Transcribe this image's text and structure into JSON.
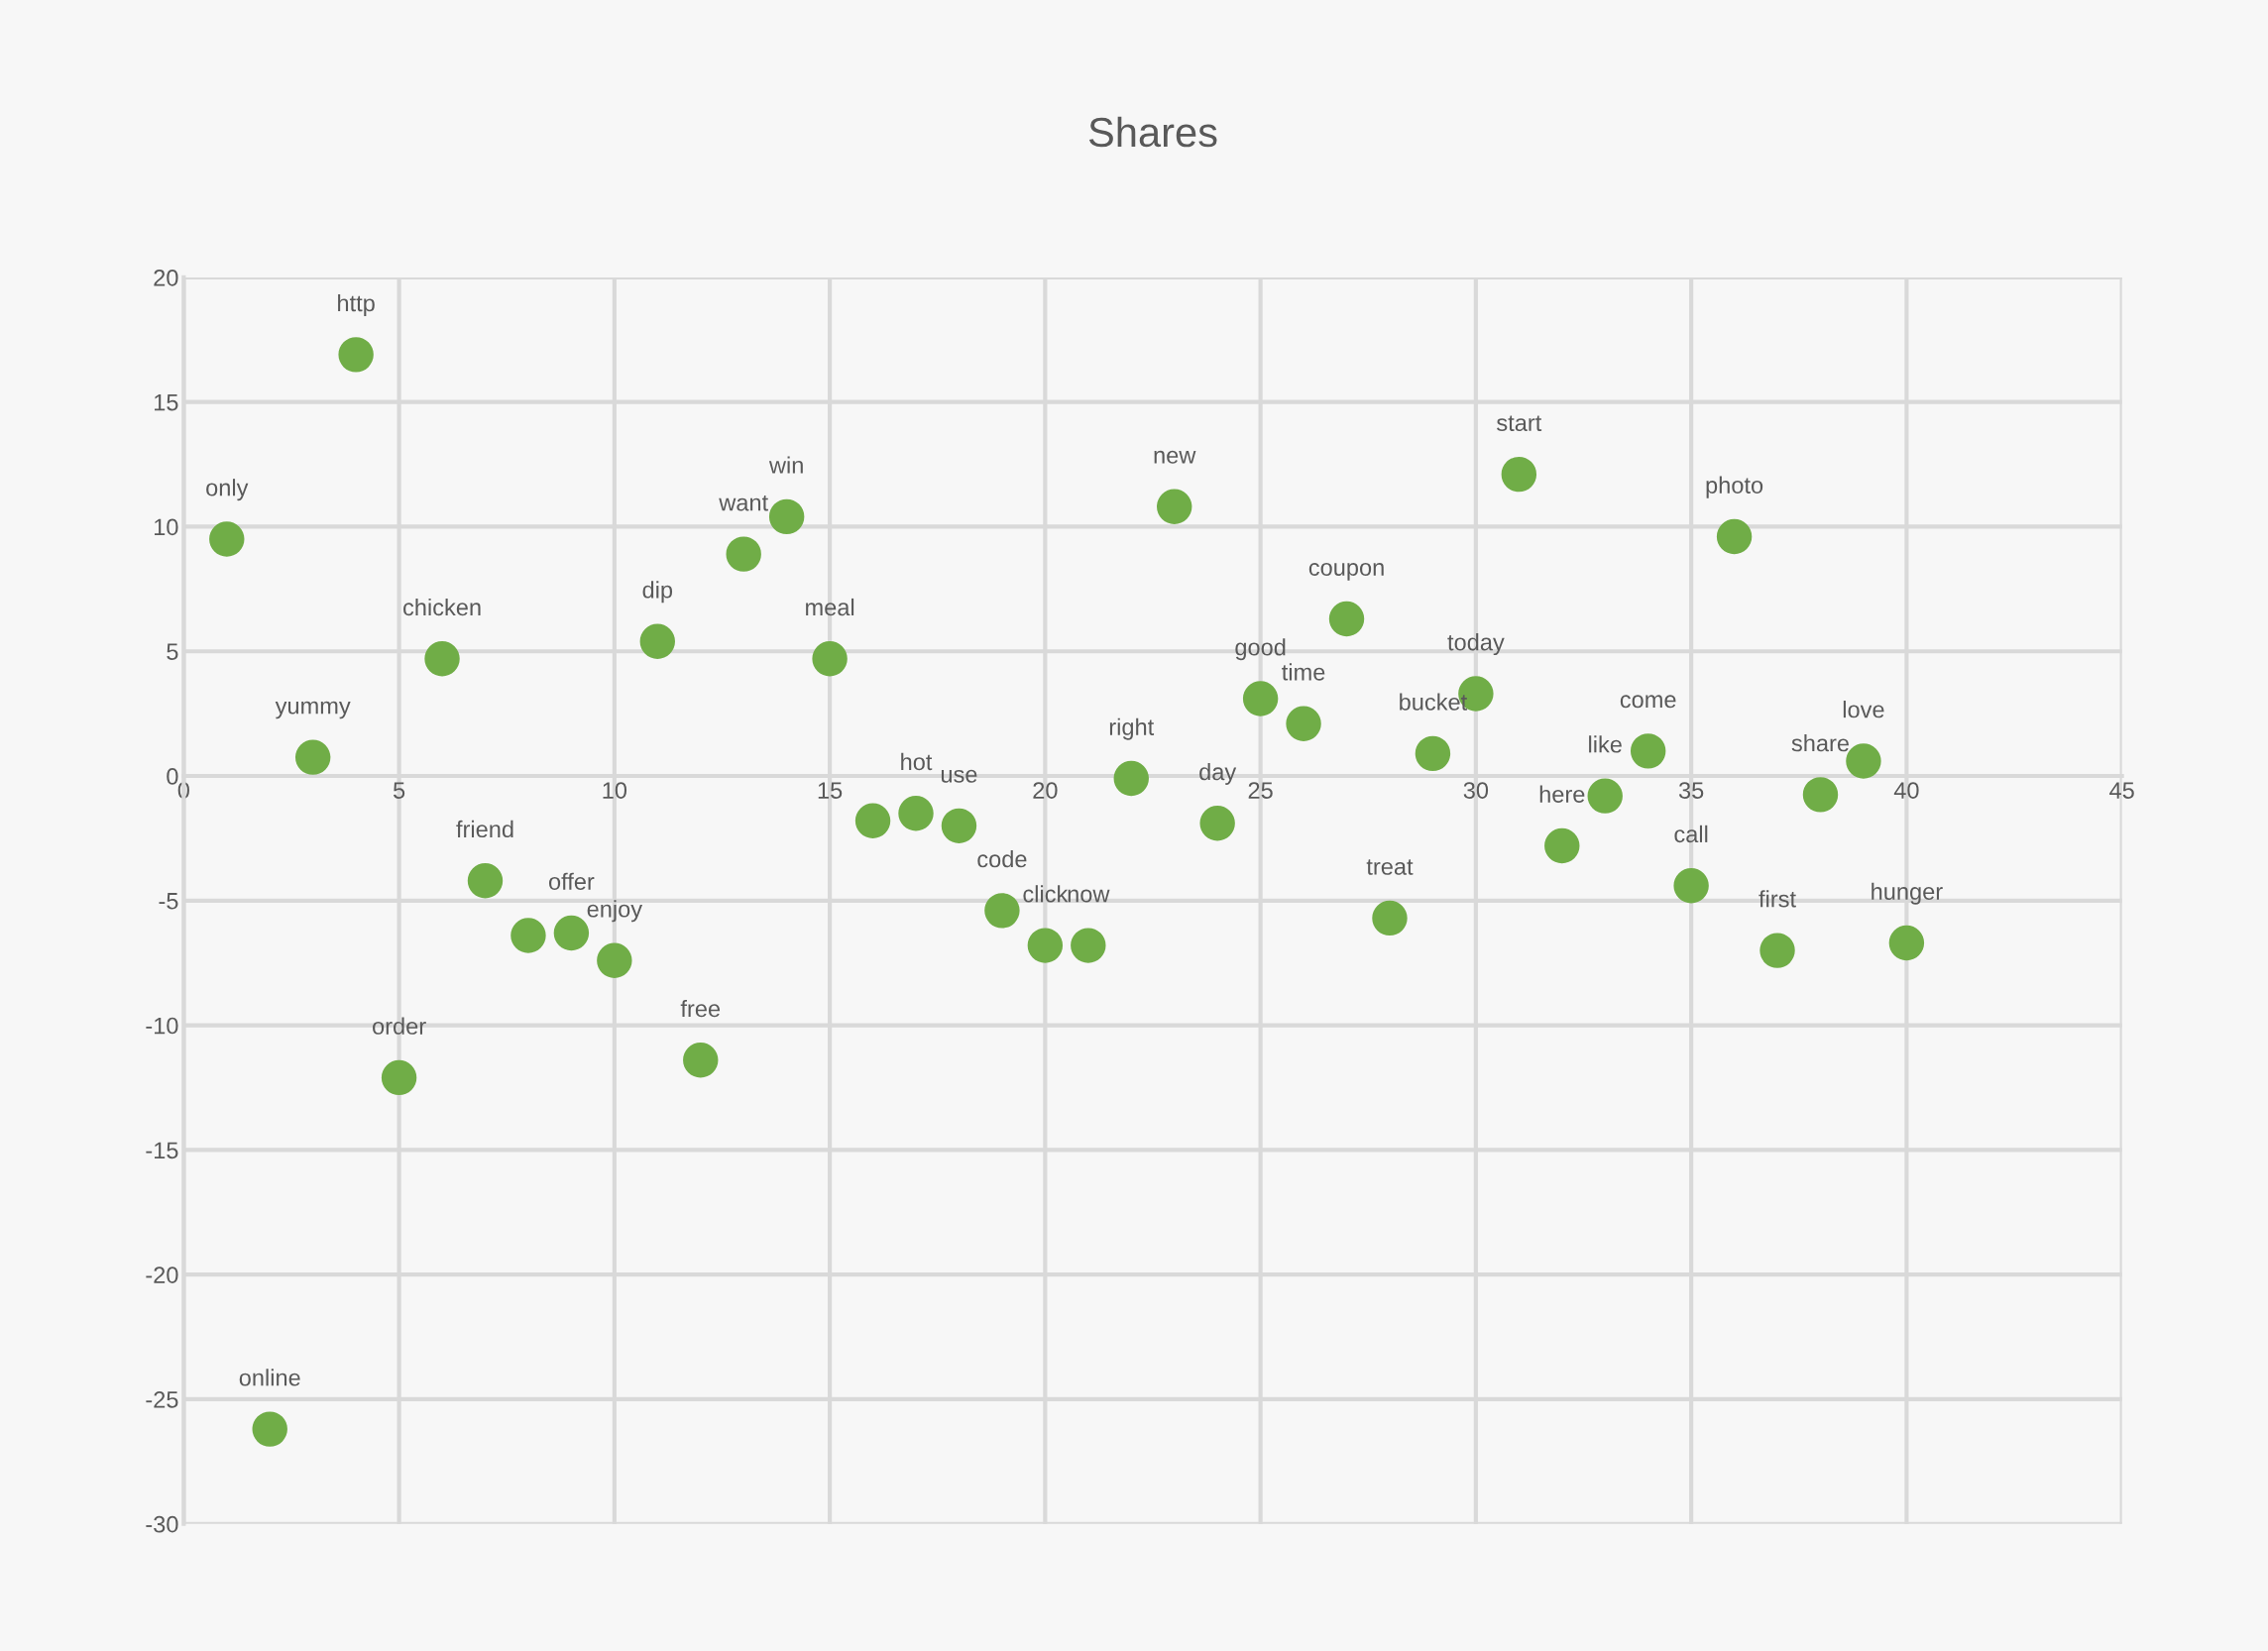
{
  "chart_data": {
    "type": "scatter",
    "title": "Shares",
    "x": [
      1,
      2,
      3,
      4,
      5,
      6,
      7,
      8,
      9,
      10,
      11,
      12,
      13,
      14,
      15,
      16,
      17,
      18,
      19,
      20,
      21,
      22,
      23,
      24,
      25,
      26,
      27,
      28,
      29,
      30,
      31,
      32,
      33,
      34,
      35,
      36,
      37,
      38,
      39,
      40
    ],
    "values": [
      9.5,
      -26.2,
      0.75,
      16.9,
      -12.1,
      4.7,
      -4.2,
      -6.4,
      -6.3,
      -7.4,
      5.4,
      -11.4,
      8.9,
      10.4,
      4.7,
      -1.8,
      -1.5,
      -2.0,
      -5.4,
      -6.8,
      -6.8,
      -0.1,
      10.8,
      -1.9,
      3.1,
      2.1,
      6.3,
      -5.7,
      0.9,
      3.3,
      12.1,
      -2.8,
      -0.8,
      1.0,
      -4.4,
      9.6,
      -7.0,
      -0.75,
      0.6,
      -6.7
    ],
    "color": "#70ad47",
    "marker": "circle",
    "grid": true,
    "xlim": [
      0,
      45
    ],
    "xticks": [
      0,
      5,
      10,
      15,
      20,
      25,
      30,
      35,
      40,
      45
    ],
    "ylim": [
      -30,
      20
    ],
    "yticks": [
      -30,
      -25,
      -20,
      -15,
      -10,
      -5,
      0,
      5,
      10,
      15,
      20
    ],
    "annotations": [
      {
        "text": "only",
        "x": 1,
        "y": 9.5
      },
      {
        "text": "online",
        "x": 2,
        "y": -26.2
      },
      {
        "text": "yummy",
        "x": 3,
        "y": 0.75
      },
      {
        "text": "http",
        "x": 4,
        "y": 16.9
      },
      {
        "text": "order",
        "x": 5,
        "y": -12.1
      },
      {
        "text": "chicken",
        "x": 6,
        "y": 4.7
      },
      {
        "text": "friend",
        "x": 7,
        "y": -4.2
      },
      {
        "text": "offer",
        "x": 9,
        "y": -6.3
      },
      {
        "text": "enjoy",
        "x": 10,
        "y": -7.4
      },
      {
        "text": "dip",
        "x": 11,
        "y": 5.4
      },
      {
        "text": "free",
        "x": 12,
        "y": -11.4
      },
      {
        "text": "want",
        "x": 13,
        "y": 8.9
      },
      {
        "text": "win",
        "x": 14,
        "y": 10.4
      },
      {
        "text": "meal",
        "x": 15,
        "y": 4.7
      },
      {
        "text": "hot",
        "x": 17,
        "y": -1.5
      },
      {
        "text": "use",
        "x": 18,
        "y": -2.0
      },
      {
        "text": "code",
        "x": 19,
        "y": -5.4
      },
      {
        "text": "click",
        "x": 20,
        "y": -6.8
      },
      {
        "text": "now",
        "x": 21,
        "y": -6.8
      },
      {
        "text": "right",
        "x": 22,
        "y": -0.1
      },
      {
        "text": "new",
        "x": 23,
        "y": 10.8
      },
      {
        "text": "day",
        "x": 24,
        "y": -1.9
      },
      {
        "text": "good",
        "x": 25,
        "y": 3.1
      },
      {
        "text": "time",
        "x": 26,
        "y": 2.1
      },
      {
        "text": "coupon",
        "x": 27,
        "y": 6.3
      },
      {
        "text": "treat",
        "x": 28,
        "y": -5.7
      },
      {
        "text": "bucket",
        "x": 29,
        "y": 0.9
      },
      {
        "text": "today",
        "x": 30,
        "y": 3.3
      },
      {
        "text": "start",
        "x": 31,
        "y": 12.1
      },
      {
        "text": "here",
        "x": 32,
        "y": -2.8
      },
      {
        "text": "like",
        "x": 33,
        "y": -0.8
      },
      {
        "text": "come",
        "x": 34,
        "y": 1.0
      },
      {
        "text": "call",
        "x": 35,
        "y": -4.4
      },
      {
        "text": "photo",
        "x": 36,
        "y": 9.6
      },
      {
        "text": "first",
        "x": 37,
        "y": -7.0
      },
      {
        "text": "share",
        "x": 38,
        "y": -0.75
      },
      {
        "text": "love",
        "x": 39,
        "y": 0.6
      },
      {
        "text": "hunger",
        "x": 40,
        "y": -6.7
      }
    ]
  }
}
